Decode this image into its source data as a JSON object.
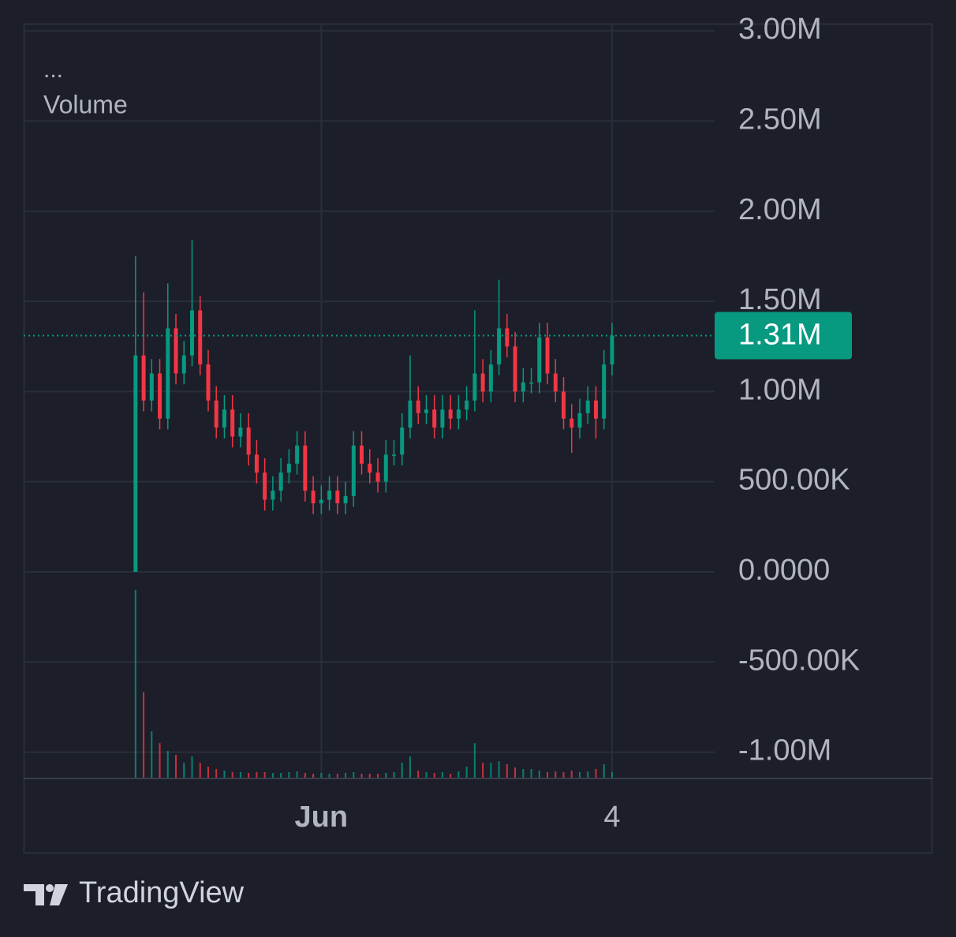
{
  "chart_data": {
    "type": "candlestick",
    "legend_dots": "...",
    "indicator": "Volume",
    "brand": "TradingView",
    "up_color": "#089981",
    "down_color": "#f23645",
    "grid": true,
    "x": [
      0,
      2,
      4,
      6,
      8,
      10,
      12,
      14,
      16,
      18,
      20,
      22,
      24,
      26,
      28,
      30,
      32,
      34,
      36,
      38,
      40,
      42,
      44,
      46,
      48,
      50,
      52,
      54,
      56,
      58,
      60,
      62,
      64,
      66,
      68,
      70,
      72,
      74,
      76,
      78,
      80,
      82,
      84,
      86,
      88,
      90,
      92,
      94,
      96,
      98,
      100,
      102,
      104,
      106,
      108,
      110,
      112,
      114,
      116,
      118
    ],
    "open": [
      0,
      1200000,
      950000,
      1100000,
      850000,
      1350000,
      1100000,
      1200000,
      1450000,
      1150000,
      950000,
      800000,
      900000,
      750000,
      800000,
      650000,
      550000,
      400000,
      450000,
      550000,
      600000,
      700000,
      450000,
      380000,
      400000,
      450000,
      380000,
      420000,
      700000,
      600000,
      550000,
      500000,
      650000,
      650000,
      800000,
      950000,
      880000,
      900000,
      800000,
      900000,
      850000,
      900000,
      950000,
      1100000,
      1000000,
      1150000,
      1350000,
      1250000,
      1000000,
      1050000,
      1050000,
      1300000,
      1100000,
      1000000,
      850000,
      800000,
      880000,
      950000,
      850000,
      1150000
    ],
    "high": [
      1750000,
      1550000,
      1180000,
      1180000,
      1600000,
      1430000,
      1280000,
      1840000,
      1530000,
      1230000,
      1030000,
      980000,
      980000,
      880000,
      880000,
      730000,
      630000,
      530000,
      630000,
      680000,
      780000,
      780000,
      530000,
      480000,
      530000,
      530000,
      500000,
      780000,
      780000,
      680000,
      630000,
      730000,
      730000,
      880000,
      1200000,
      1030000,
      980000,
      980000,
      980000,
      980000,
      980000,
      1030000,
      1450000,
      1180000,
      1230000,
      1620000,
      1430000,
      1330000,
      1130000,
      1130000,
      1380000,
      1380000,
      1180000,
      1080000,
      930000,
      960000,
      1030000,
      1030000,
      1230000,
      1380000
    ],
    "low": [
      0,
      890000,
      890000,
      790000,
      790000,
      1040000,
      1040000,
      1140000,
      1090000,
      890000,
      740000,
      740000,
      690000,
      690000,
      590000,
      490000,
      340000,
      340000,
      390000,
      490000,
      540000,
      390000,
      320000,
      320000,
      340000,
      320000,
      320000,
      360000,
      540000,
      490000,
      440000,
      440000,
      590000,
      590000,
      740000,
      820000,
      820000,
      740000,
      740000,
      790000,
      790000,
      840000,
      890000,
      940000,
      940000,
      1090000,
      1190000,
      940000,
      940000,
      990000,
      990000,
      1040000,
      940000,
      790000,
      660000,
      740000,
      820000,
      740000,
      790000,
      1090000
    ],
    "close": [
      1200000,
      950000,
      1100000,
      850000,
      1350000,
      1100000,
      1200000,
      1450000,
      1150000,
      950000,
      800000,
      900000,
      750000,
      800000,
      650000,
      550000,
      400000,
      450000,
      550000,
      600000,
      700000,
      450000,
      380000,
      400000,
      450000,
      380000,
      420000,
      700000,
      600000,
      550000,
      500000,
      650000,
      650000,
      800000,
      950000,
      880000,
      900000,
      800000,
      900000,
      850000,
      900000,
      950000,
      1100000,
      1000000,
      1150000,
      1350000,
      1250000,
      1000000,
      1050000,
      1050000,
      1300000,
      1100000,
      1000000,
      850000,
      800000,
      880000,
      950000,
      850000,
      1150000,
      1310000
    ],
    "volume": [
      240,
      110,
      60,
      45,
      35,
      30,
      20,
      28,
      20,
      15,
      12,
      10,
      8,
      8,
      7,
      8,
      8,
      7,
      7,
      8,
      9,
      7,
      6,
      7,
      6,
      6,
      7,
      8,
      6,
      6,
      6,
      7,
      8,
      20,
      28,
      10,
      8,
      7,
      8,
      6,
      9,
      15,
      45,
      20,
      20,
      22,
      18,
      14,
      12,
      12,
      10,
      8,
      9,
      8,
      10,
      8,
      9,
      12,
      18,
      8
    ],
    "last_value": 1310000,
    "last_value_label": "1.31M",
    "xlim": [
      -27.7,
      143.4
    ],
    "xticks": [
      {
        "value": 46,
        "label": "Jun"
      },
      {
        "value": 118,
        "label": "4"
      }
    ],
    "ylim": [
      -1146000,
      3040000
    ],
    "yticks": [
      {
        "value": -1000000,
        "label": "-1.00M"
      },
      {
        "value": -500000,
        "label": "-500.00K"
      },
      {
        "value": 0,
        "label": "0.0000"
      },
      {
        "value": 500000,
        "label": "500.00K"
      },
      {
        "value": 1000000,
        "label": "1.00M"
      },
      {
        "value": 1500000,
        "label": "1.50M"
      },
      {
        "value": 2000000,
        "label": "2.00M"
      },
      {
        "value": 2500000,
        "label": "2.50M"
      },
      {
        "value": 3000000,
        "label": "3.00M"
      }
    ]
  }
}
